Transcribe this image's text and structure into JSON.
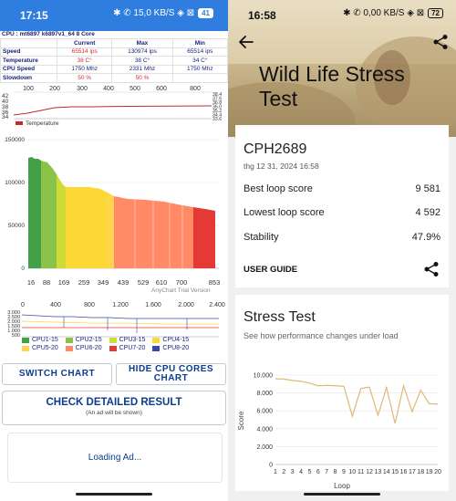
{
  "left": {
    "status_bar": {
      "time": "17:15",
      "icons": "✱ ✆ 15,0 KB/S ◈ ⊠",
      "battery": "41"
    },
    "cpu_title": "CPU : mt6897 k6897v1_64 8 Core",
    "stats": {
      "headers": [
        "",
        "Current",
        "Max",
        "Min"
      ],
      "rows": [
        {
          "label": "Speed",
          "current": "65514 ips",
          "max": "130974 ips",
          "min": "65514 ips"
        },
        {
          "label": "Temperature",
          "current": "38 C°",
          "max": "38 C°",
          "min": "34 C°"
        },
        {
          "label": "CPU Speed",
          "current": "1750 Mhz",
          "max": "2331 Mhz",
          "min": "1750 Mhz"
        },
        {
          "label": "Slowdown",
          "current": "50 %",
          "max": "50 %",
          "min": ""
        }
      ]
    },
    "temp_chart": {
      "legend": "Temperature",
      "x_ticks": [
        "100",
        "200",
        "300",
        "400",
        "500",
        "600",
        "700",
        "800"
      ],
      "y_ticks_left": [
        "42",
        "40",
        "38",
        "36",
        "34"
      ],
      "y_ticks_right": [
        "38.4",
        "37.6",
        "36.8",
        "36.0",
        "35.2",
        "34.4",
        "33.6"
      ],
      "color": "#c62828"
    },
    "speed_chart": {
      "y_ticks": [
        "150000",
        "100000",
        "50000",
        "0"
      ],
      "x_ticks": [
        "16",
        "88",
        "169",
        "259",
        "349",
        "439",
        "529",
        "610",
        "700",
        "853"
      ],
      "credit": "AnyChart Trial Version"
    },
    "freq_chart": {
      "x_ticks": [
        "0",
        "400",
        "800",
        "1.200",
        "1.600",
        "2.000",
        "2.400"
      ],
      "y_ticks": [
        "3.000",
        "2.500",
        "2.000",
        "1.500",
        "1.000",
        "500"
      ]
    },
    "legend": [
      {
        "name": "CPU1-15",
        "color": "#43a047"
      },
      {
        "name": "CPU2-15",
        "color": "#8bc34a"
      },
      {
        "name": "CPU3-15",
        "color": "#cddc39"
      },
      {
        "name": "CPU4-15",
        "color": "#fdd835"
      },
      {
        "name": "CPU5-20",
        "color": "#ffd54f"
      },
      {
        "name": "CPU6-20",
        "color": "#ff8a65"
      },
      {
        "name": "CPU7-20",
        "color": "#e53935"
      },
      {
        "name": "CPU8-20",
        "color": "#3949ab"
      }
    ],
    "buttons": {
      "switch_chart": "SWITCH CHART",
      "hide_cpu_cores": "HIDE CPU CORES CHART"
    },
    "check_result": {
      "title": "CHECK DETAILED RESULT",
      "subtitle": "(An ad will be shown)"
    },
    "loading_ad": "Loading Ad..."
  },
  "right": {
    "status_bar": {
      "time": "16:58",
      "icons": "✱ ✆ 0,00 KB/S ◈ ⊠",
      "battery": "72"
    },
    "title": "Wild Life Stress Test",
    "device": "CPH2689",
    "date": "thg 12 31, 2024 16:58",
    "results": [
      {
        "label": "Best loop score",
        "value": "9 581"
      },
      {
        "label": "Lowest loop score",
        "value": "4 592"
      },
      {
        "label": "Stability",
        "value": "47.9%"
      }
    ],
    "user_guide": "USER GUIDE",
    "stress": {
      "title": "Stress Test",
      "subtitle": "See how performance changes under load",
      "ylabel": "Score",
      "xlabel": "Loop",
      "y_ticks": [
        "10.000",
        "8.000",
        "6.000",
        "4.000",
        "2.000",
        "0"
      ],
      "line_color": "#e0b878"
    }
  },
  "chart_data": [
    {
      "type": "line",
      "title": "Stress Test",
      "xlabel": "Loop",
      "ylabel": "Score",
      "x": [
        1,
        2,
        3,
        4,
        5,
        6,
        7,
        8,
        9,
        10,
        11,
        12,
        13,
        14,
        15,
        16,
        17,
        18,
        19,
        20
      ],
      "values": [
        9581,
        9550,
        9400,
        9300,
        9100,
        8800,
        8850,
        8800,
        8750,
        5400,
        8500,
        8650,
        5500,
        8600,
        4592,
        8800,
        5900,
        8300,
        6800,
        6750
      ],
      "ylim": [
        0,
        10000
      ],
      "grid": true
    }
  ]
}
